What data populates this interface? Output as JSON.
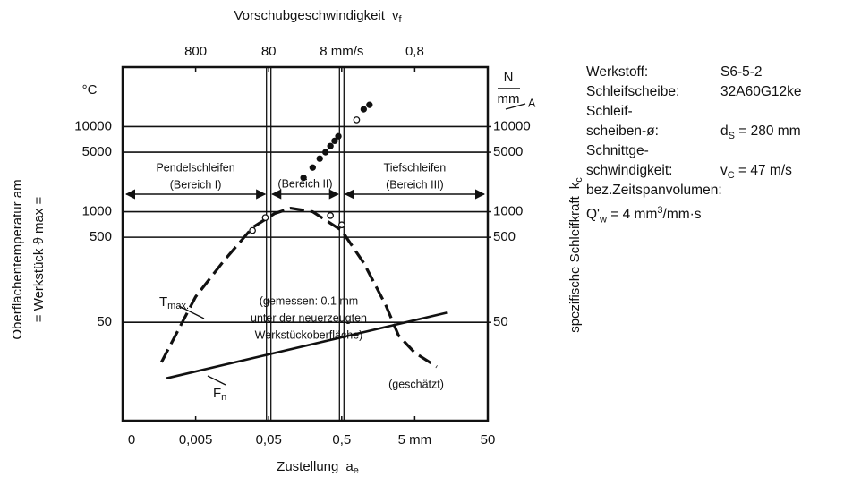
{
  "chart_data": {
    "type": "line",
    "x_title": {
      "text": "Zustellung",
      "symbol": "a",
      "sub": "e"
    },
    "x2_title": {
      "text": "Vorschubgeschwindigkeit",
      "symbol": "v",
      "sub": "f"
    },
    "y_title": [
      "Oberflächentemperatur am",
      "= Werkstück  ϑ max ="
    ],
    "y_unit": "°C",
    "y2_title": {
      "text": "spezifische Schleifkraft",
      "symbol": "k",
      "sub": "c"
    },
    "y2_unit": [
      "N",
      "mm"
    ],
    "xscale": "log",
    "xlim": [
      0.0005,
      50
    ],
    "xticks": [
      {
        "value": 0.005,
        "label": "0,005"
      },
      {
        "value": 0.05,
        "label": "0,05"
      },
      {
        "value": 0.5,
        "label": "0,5"
      },
      {
        "value": 5,
        "label": "5 mm"
      },
      50
    ],
    "x_origin_label": "0",
    "x2lim": [
      8000,
      0.08
    ],
    "x2ticks": [
      800,
      80,
      {
        "value": 8,
        "label": "8 mm/s"
      },
      {
        "value": 0.8,
        "label": "0,8"
      }
    ],
    "yscale": "log",
    "ylim": [
      3.5,
      50000
    ],
    "yticks": [
      50,
      500,
      1000,
      5000,
      10000
    ],
    "y2lim": [
      3.5,
      50000
    ],
    "y2ticks": [
      50,
      500,
      1000,
      5000,
      10000
    ],
    "grid": true,
    "boundaries": [
      0.05,
      0.5
    ],
    "series": [
      {
        "label": {
          "text": "T",
          "sub": "max."
        },
        "style": "dashed",
        "color": "#111111",
        "x": [
          0.0017,
          0.005,
          0.012,
          0.03,
          0.06,
          0.1,
          0.2,
          0.5,
          1,
          2,
          3,
          5,
          10
        ],
        "values": [
          17,
          100,
          260,
          650,
          950,
          1100,
          1000,
          600,
          250,
          80,
          35,
          22,
          15
        ]
      },
      {
        "label": {
          "text": "F",
          "sub": "n"
        },
        "style": "solid",
        "color": "#111111",
        "axis": "y2",
        "x": [
          0.002,
          13.8
        ],
        "values": [
          11,
          65
        ]
      },
      {
        "kind": "scatter",
        "marker": "filled",
        "color": "#111111",
        "axis": "y2",
        "x": [
          0.15,
          0.2,
          0.25,
          0.3,
          0.35,
          0.4,
          0.45,
          1.0,
          1.2
        ],
        "values": [
          2500,
          3300,
          4200,
          5000,
          5900,
          6800,
          7700,
          16000,
          18000
        ]
      },
      {
        "kind": "scatter",
        "marker": "open",
        "color": "#111111",
        "x": [
          0.03,
          0.045,
          0.35,
          0.5,
          0.8
        ],
        "values": [
          600,
          850,
          900,
          700,
          12000
        ]
      }
    ],
    "regions": [
      {
        "name": "Pendelschleifen",
        "sub": "(Bereich I)"
      },
      {
        "sub": "(Bereich II)"
      },
      {
        "name": "Tiefschleifen",
        "sub": "(Bereich III)"
      }
    ],
    "annotations": [
      "A",
      "(gemessen: 0.1 mm",
      "unter der neuerzeugten",
      "Werkstückoberfläche)",
      "(geschätzt)"
    ]
  },
  "info": [
    {
      "label": "Werkstoff:",
      "value": [
        {
          "t": "S6-5-2"
        }
      ]
    },
    {
      "label": "Schleifscheibe:",
      "value": [
        {
          "t": "32A60G12ke"
        }
      ]
    },
    {
      "label": "Schleif-"
    },
    {
      "label": "scheiben-ø:",
      "value": [
        {
          "t": "d"
        },
        {
          "sub": "S"
        },
        {
          "t": " = 280 mm"
        }
      ]
    },
    {
      "label": "Schnittge-"
    },
    {
      "label": "schwindigkeit:",
      "value": [
        {
          "t": "v"
        },
        {
          "sub": "C"
        },
        {
          "t": " =  47 m/s"
        }
      ]
    },
    {
      "label": "bez.Zeitspanvolumen:"
    },
    {
      "value": [
        {
          "t": "Q'"
        },
        {
          "sub": "w"
        },
        {
          "t": " = 4 mm"
        },
        {
          "sup": "3"
        },
        {
          "t": "/mm·s"
        }
      ]
    }
  ]
}
